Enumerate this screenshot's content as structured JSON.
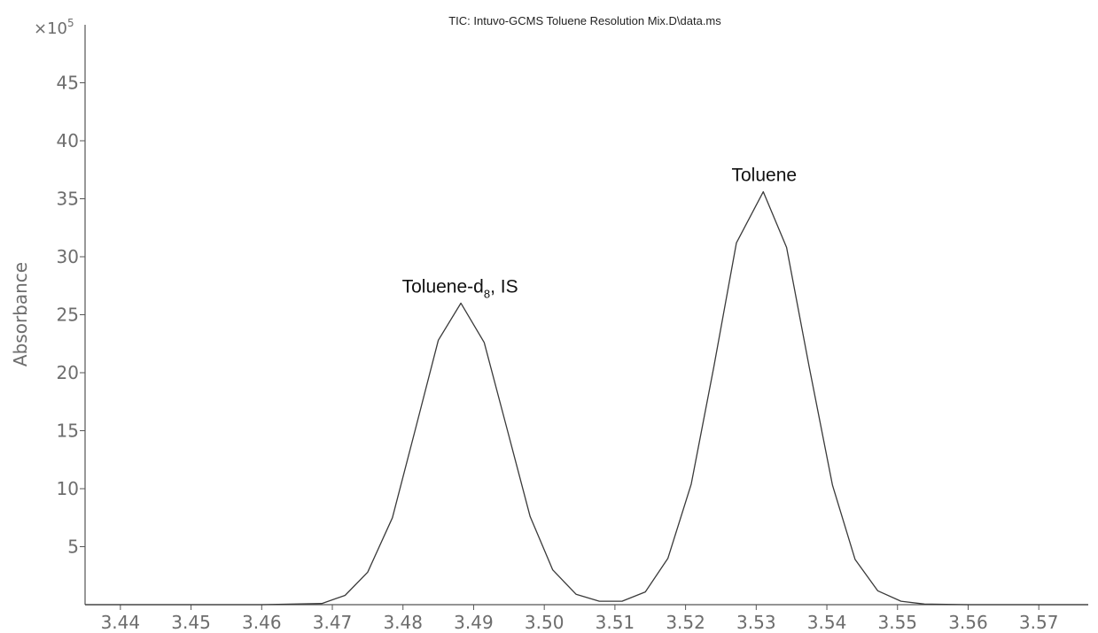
{
  "chart_data": {
    "type": "line",
    "title": "TIC: Intuvo-GCMS Toluene Resolution Mix.D\\data.ms",
    "xlabel": "",
    "ylabel": "Absorbance",
    "y_multiplier": {
      "base": "×10",
      "exponent": "5"
    },
    "xlim": [
      3.435,
      3.577
    ],
    "ylim": [
      0,
      50
    ],
    "x_ticks": [
      "3.44",
      "3.45",
      "3.46",
      "3.47",
      "3.48",
      "3.49",
      "3.50",
      "3.51",
      "3.52",
      "3.53",
      "3.54",
      "3.55",
      "3.56",
      "3.57"
    ],
    "x_tick_values": [
      3.44,
      3.45,
      3.46,
      3.47,
      3.48,
      3.49,
      3.5,
      3.51,
      3.52,
      3.53,
      3.54,
      3.55,
      3.56,
      3.57
    ],
    "y_ticks": [
      "5",
      "10",
      "15",
      "20",
      "25",
      "30",
      "35",
      "40",
      "45"
    ],
    "y_tick_values": [
      5,
      10,
      15,
      20,
      25,
      30,
      35,
      40,
      45
    ],
    "grid": false,
    "series": [
      {
        "color": "#3a3a3a",
        "points": [
          [
            3.435,
            0
          ],
          [
            3.46,
            0
          ],
          [
            3.4685,
            0.1
          ],
          [
            3.4718,
            0.8
          ],
          [
            3.475,
            2.8
          ],
          [
            3.4785,
            7.5
          ],
          [
            3.4817,
            15.0
          ],
          [
            3.485,
            22.8
          ],
          [
            3.4882,
            26.0
          ],
          [
            3.4915,
            22.6
          ],
          [
            3.4948,
            15.0
          ],
          [
            3.498,
            7.6
          ],
          [
            3.5012,
            3.0
          ],
          [
            3.5045,
            0.9
          ],
          [
            3.5078,
            0.3
          ],
          [
            3.511,
            0.3
          ],
          [
            3.5143,
            1.1
          ],
          [
            3.5175,
            4.0
          ],
          [
            3.5208,
            10.4
          ],
          [
            3.524,
            20.5
          ],
          [
            3.5272,
            31.2
          ],
          [
            3.531,
            35.6
          ],
          [
            3.5343,
            30.8
          ],
          [
            3.5375,
            20.5
          ],
          [
            3.5408,
            10.3
          ],
          [
            3.544,
            3.9
          ],
          [
            3.5472,
            1.2
          ],
          [
            3.5505,
            0.3
          ],
          [
            3.5538,
            0.05
          ],
          [
            3.56,
            0
          ],
          [
            3.577,
            0
          ]
        ]
      }
    ],
    "annotations": [
      {
        "text": "Toluene-d",
        "subscript": "8",
        "suffix": ", IS",
        "x": 3.4882,
        "y": 26.0
      },
      {
        "text": "Toluene",
        "x": 3.531,
        "y": 35.6
      }
    ]
  }
}
